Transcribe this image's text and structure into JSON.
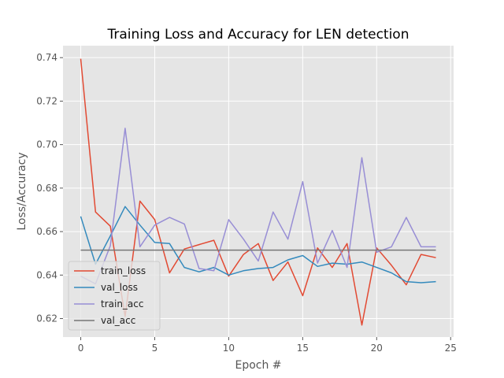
{
  "chart_data": {
    "type": "line",
    "title": "Training Loss and Accuracy for LEN detection",
    "xlabel": "Epoch #",
    "ylabel": "Loss/Accuracy",
    "xlim": [
      -1.2,
      25.2
    ],
    "ylim": [
      0.6115,
      0.7455
    ],
    "xticks": [
      0,
      5,
      10,
      15,
      20,
      25
    ],
    "yticks": [
      0.62,
      0.64,
      0.66,
      0.68,
      0.7,
      0.72,
      0.74
    ],
    "grid": true,
    "legend_position": "lower-left",
    "x": [
      0,
      1,
      2,
      3,
      4,
      5,
      6,
      7,
      8,
      9,
      10,
      11,
      12,
      13,
      14,
      15,
      16,
      17,
      18,
      19,
      20,
      21,
      22,
      23,
      24
    ],
    "series": [
      {
        "name": "train_loss",
        "color": "#e24a33",
        "values": [
          0.7395,
          0.669,
          0.6625,
          0.621,
          0.674,
          0.6655,
          0.641,
          0.652,
          0.654,
          0.656,
          0.6395,
          0.6495,
          0.6545,
          0.6375,
          0.646,
          0.6305,
          0.6525,
          0.6435,
          0.6545,
          0.617,
          0.6525,
          0.6445,
          0.6355,
          0.6495,
          0.648
        ]
      },
      {
        "name": "val_loss",
        "color": "#348abd",
        "values": [
          0.667,
          0.645,
          0.658,
          0.6715,
          0.663,
          0.655,
          0.6545,
          0.6435,
          0.6415,
          0.6435,
          0.64,
          0.642,
          0.643,
          0.6435,
          0.647,
          0.649,
          0.644,
          0.6455,
          0.645,
          0.646,
          0.6435,
          0.641,
          0.637,
          0.6365,
          0.637
        ]
      },
      {
        "name": "train_acc",
        "color": "#988ed5",
        "values": [
          0.6395,
          0.636,
          0.6535,
          0.7075,
          0.653,
          0.663,
          0.6665,
          0.6635,
          0.643,
          0.642,
          0.6655,
          0.6565,
          0.6465,
          0.669,
          0.6565,
          0.683,
          0.6455,
          0.6605,
          0.6435,
          0.694,
          0.6505,
          0.653,
          0.6665,
          0.653,
          0.653
        ]
      },
      {
        "name": "val_acc",
        "color": "#777777",
        "values": [
          0.6515,
          0.6515,
          0.6515,
          0.6515,
          0.6515,
          0.6515,
          0.6515,
          0.6515,
          0.6515,
          0.6515,
          0.6515,
          0.6515,
          0.6515,
          0.6515,
          0.6515,
          0.6515,
          0.6515,
          0.6515,
          0.6515,
          0.6515,
          0.6515,
          0.6515,
          0.6515,
          0.6515,
          0.6515
        ]
      }
    ]
  }
}
